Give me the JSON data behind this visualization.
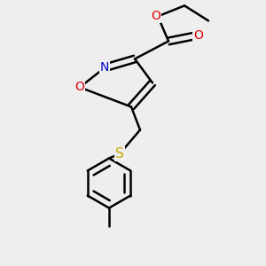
{
  "background_color": "#eeeeee",
  "atom_colors": {
    "C": "#000000",
    "N": "#0000cc",
    "O": "#dd0000",
    "S": "#ccaa00",
    "H": "#000000"
  },
  "bond_color": "#000000",
  "bond_width": 1.8,
  "figsize": [
    3.0,
    3.0
  ],
  "dpi": 100
}
